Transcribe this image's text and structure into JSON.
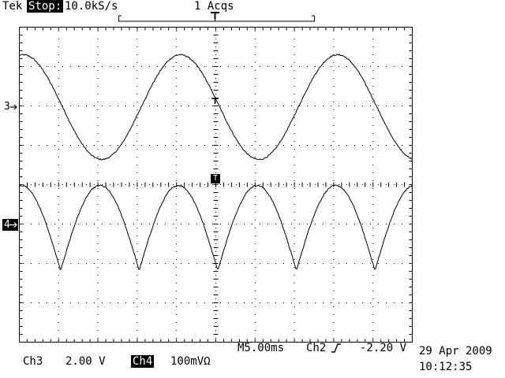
{
  "header": {
    "brand": "Tek",
    "run_state": "Stop:",
    "sample_rate": "10.0kS/s",
    "acquisitions": "1 Acqs"
  },
  "markers": {
    "ch3": "3",
    "ch4": "4",
    "trigger": "T"
  },
  "readouts": {
    "ch3_label": "Ch3",
    "ch3_scale": "2.00 V",
    "ch4_label": "Ch4",
    "ch4_scale": "100mVΩ",
    "timebase": "M5.00ms",
    "trigger_source": "Ch2",
    "trigger_slope_icon": "rising-edge-icon",
    "trigger_level": "-2.20 V",
    "date": "29 Apr 2009",
    "time": "10:12:35"
  },
  "chart_data": {
    "type": "line",
    "grid": true,
    "divisions": {
      "x": 10,
      "y": 8
    },
    "xlim": [
      -25,
      25
    ],
    "xunit": "ms",
    "series": [
      {
        "name": "Ch3",
        "shape": "sine",
        "period_div": 4.0,
        "amplitude_div": 1.33,
        "center_div": 1.97,
        "peak_x_div": [
          -0.9,
          3.1
        ],
        "trough_x_div": [
          -2.9,
          1.1,
          5.1
        ],
        "noise_div": 0.015
      },
      {
        "name": "Ch4",
        "shape": "rectified-sine-inverted",
        "period_div": 4.0,
        "top_div": -0.02,
        "bottom_div": -2.18,
        "peak_x_div": [
          -3.9,
          0.1,
          3.9
        ],
        "cusp_x_div": [
          -1.95,
          2.05
        ],
        "noise_div": 0.015
      }
    ]
  }
}
